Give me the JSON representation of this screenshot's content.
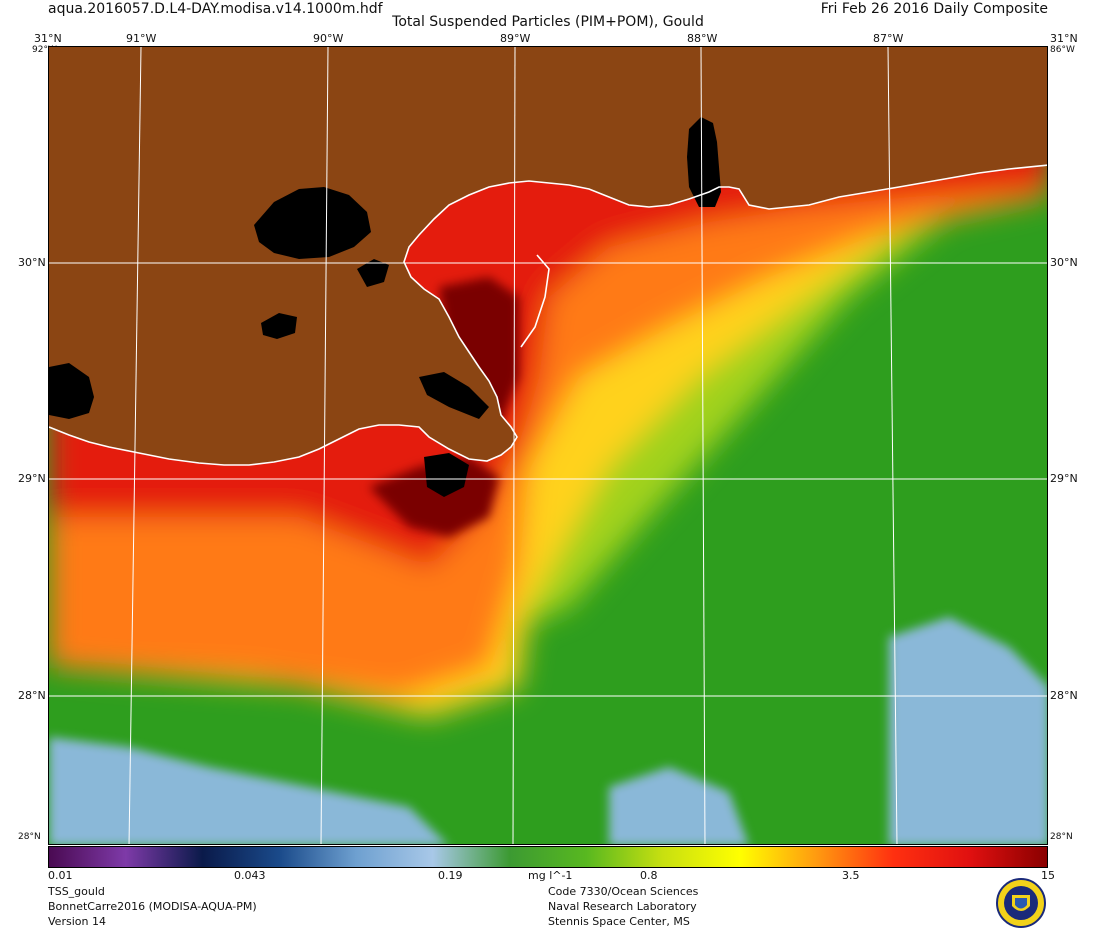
{
  "header": {
    "file": "aqua.2016057.D.L4-DAY.modisa.v14.1000m.hdf",
    "title": "Total Suspended Particles (PIM+POM), Gould",
    "date": "Fri Feb 26 2016 Daily Composite"
  },
  "map": {
    "lon_labels": [
      "91°W",
      "90°W",
      "89°W",
      "88°W",
      "87°W"
    ],
    "lat_labels": [
      "30°N",
      "29°N",
      "28°N"
    ],
    "corner_lat_top": "31°N",
    "corner_lat_bottom": "28°N",
    "corner_lon_left": "92°W",
    "corner_lon_right": "86°W",
    "colors": {
      "land": "#8b4513",
      "very_high": "#7a0000",
      "high": "#e41a0a",
      "mid_high": "#ff7a12",
      "mid": "#ffd21a",
      "mid_low": "#a0d21a",
      "low": "#2e9e1e",
      "clear": "#8ab8d8",
      "no_data": "#000000",
      "coast": "#ffffff",
      "grid": "#ffffff"
    }
  },
  "colorbar": {
    "labels": [
      "0.01",
      "0.043",
      "0.19",
      "mg l^-1",
      "0.8",
      "3.5",
      "15"
    ],
    "stops": [
      "#4a0a52",
      "#7e3aa8",
      "#0a1a4a",
      "#1a4a8a",
      "#6ea0d0",
      "#a8c8e8",
      "#3c9a32",
      "#58b820",
      "#c8e010",
      "#ffff00",
      "#ff9a10",
      "#ff3010",
      "#e01010",
      "#8a0000"
    ]
  },
  "footer": {
    "left": [
      "TSS_gould",
      "BonnetCarre2016 (MODISA-AQUA-PM)",
      "Version 14"
    ],
    "right": [
      "Code 7330/Ocean Sciences",
      "Naval Research Laboratory",
      "Stennis Space Center, MS"
    ]
  }
}
